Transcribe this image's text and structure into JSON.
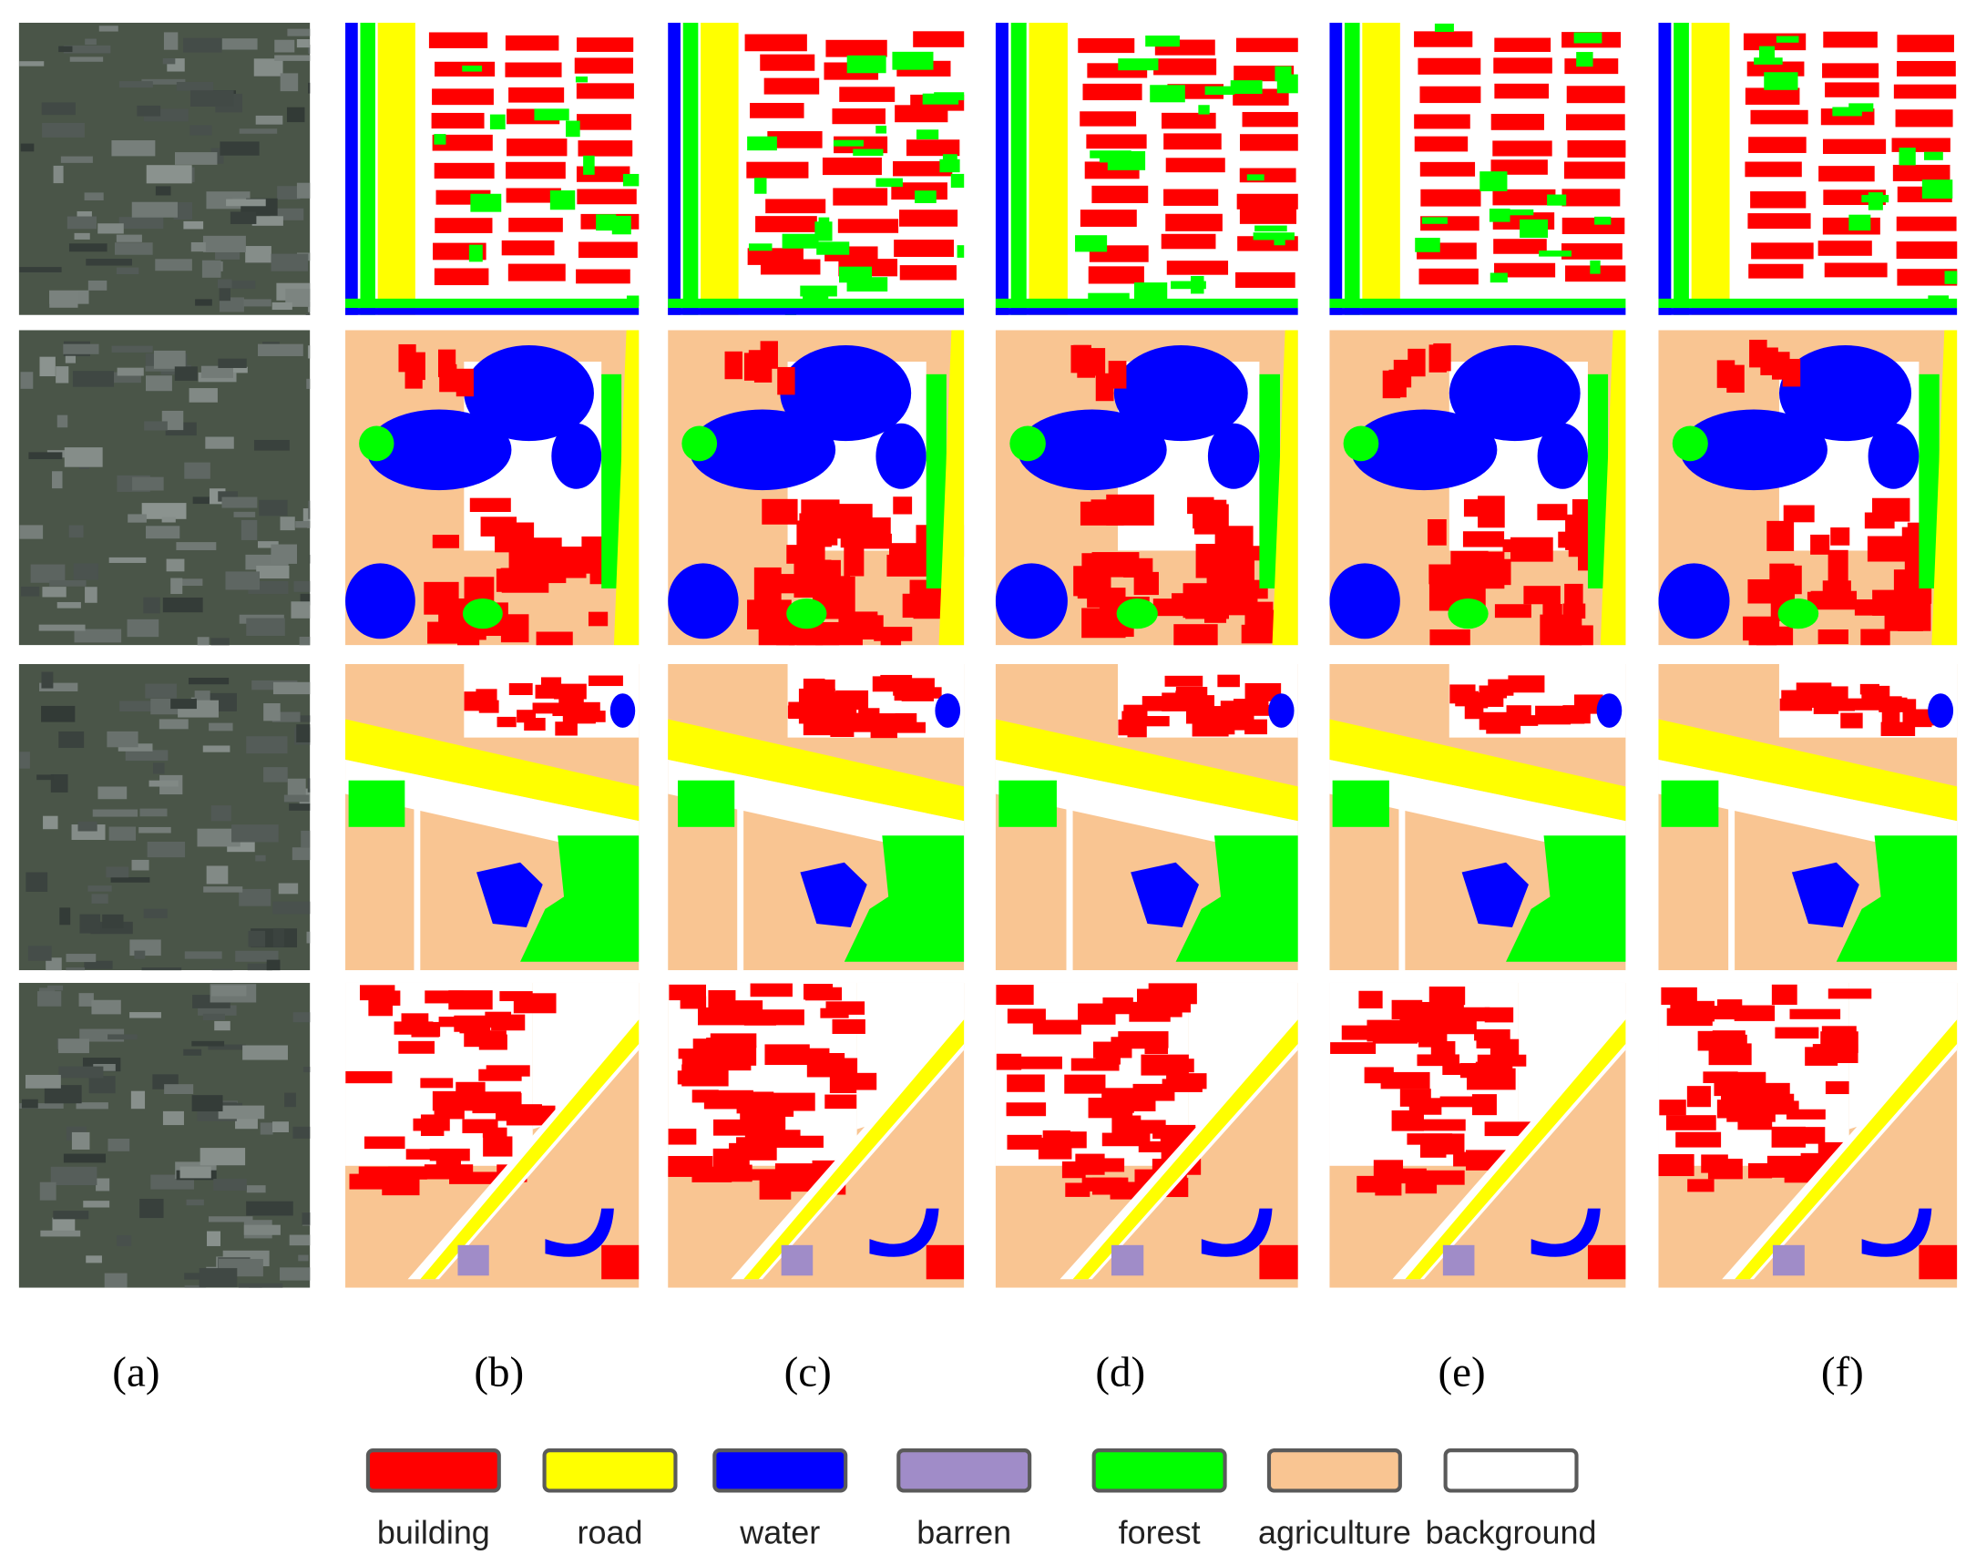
{
  "columns": [
    "(a)",
    "(b)",
    "(c)",
    "(d)",
    "(e)",
    "(f)"
  ],
  "legend": [
    {
      "label": "building",
      "color": "#ff0000"
    },
    {
      "label": "road",
      "color": "#ffff00"
    },
    {
      "label": "water",
      "color": "#0000ff"
    },
    {
      "label": "barren",
      "color": "#a08cc8"
    },
    {
      "label": "forest",
      "color": "#00ff00"
    },
    {
      "label": "agriculture",
      "color": "#f9c592"
    },
    {
      "label": "background",
      "color": "#ffffff"
    }
  ]
}
